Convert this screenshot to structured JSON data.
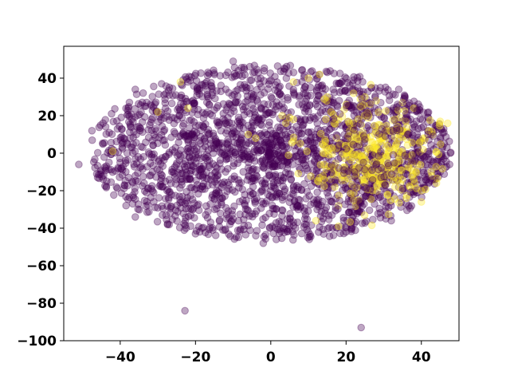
{
  "chart_data": {
    "type": "scatter",
    "title": "",
    "xlabel": "",
    "ylabel": "",
    "xlim": [
      -55,
      50
    ],
    "ylim": [
      -100,
      57
    ],
    "xticks": [
      -40,
      -20,
      0,
      20,
      40
    ],
    "yticks": [
      -100,
      -80,
      -60,
      -40,
      -20,
      0,
      20,
      40
    ],
    "xtick_labels": [
      "−40",
      "−20",
      "0",
      "20",
      "40"
    ],
    "ytick_labels": [
      "−100",
      "−80",
      "−60",
      "−40",
      "−20",
      "0",
      "20",
      "40"
    ],
    "grid": false,
    "legend": "none",
    "marker_alpha": 0.35,
    "colors": {
      "class_0": "#440154",
      "class_1": "#fde725"
    },
    "distribution": {
      "class_0": {
        "shape": "ellipse",
        "center": [
          0,
          0
        ],
        "semi_axes": [
          48,
          47
        ],
        "approx_count": 2200
      },
      "class_1": {
        "cluster_center": [
          28,
          -2
        ],
        "spread": [
          9,
          14
        ],
        "approx_count": 300
      }
    },
    "series": [
      {
        "class": 0,
        "points": [
          [
            -22.8,
            -84.0
          ],
          [
            24.0,
            -93.0
          ],
          [
            -51.0,
            -6.0
          ],
          [
            47.5,
            -6.0
          ],
          [
            -10.0,
            49.0
          ],
          [
            -2.0,
            -48.0
          ],
          [
            -47.5,
            12.0
          ],
          [
            -46.0,
            -13.0
          ],
          [
            46.0,
            11.0
          ],
          [
            45.0,
            -10.0
          ],
          [
            -36.0,
            34.0
          ],
          [
            34.0,
            34.0
          ],
          [
            -36.0,
            -34.0
          ],
          [
            32.0,
            -36.0
          ],
          [
            -22.0,
            38.0
          ],
          [
            22.0,
            39.0
          ],
          [
            -20.0,
            -43.0
          ],
          [
            20.0,
            -42.0
          ]
        ]
      },
      {
        "class": 1,
        "points": [
          [
            -24.0,
            38.0
          ],
          [
            -22.0,
            24.0
          ],
          [
            -42.0,
            1.0
          ],
          [
            -30.0,
            22.0
          ],
          [
            3.0,
            20.0
          ],
          [
            5.0,
            19.0
          ],
          [
            6.0,
            18.0
          ],
          [
            4.0,
            16.0
          ],
          [
            -4.0,
            8.0
          ],
          [
            -6.0,
            10.0
          ],
          [
            22.0,
            32.0
          ],
          [
            25.0,
            30.0
          ],
          [
            28.0,
            28.0
          ],
          [
            20.0,
            26.0
          ],
          [
            24.0,
            25.0
          ],
          [
            26.0,
            20.0
          ],
          [
            22.0,
            16.0
          ],
          [
            29.0,
            15.0
          ],
          [
            33.0,
            18.0
          ],
          [
            35.0,
            12.0
          ],
          [
            23.0,
            8.0
          ],
          [
            27.0,
            6.0
          ],
          [
            31.0,
            4.0
          ],
          [
            26.0,
            2.0
          ],
          [
            24.0,
            -2.0
          ],
          [
            29.0,
            -4.0
          ],
          [
            33.0,
            -6.0
          ],
          [
            22.0,
            -8.0
          ],
          [
            27.0,
            -10.0
          ],
          [
            31.0,
            -12.0
          ],
          [
            25.0,
            -14.0
          ],
          [
            29.0,
            -16.0
          ],
          [
            33.0,
            -18.0
          ],
          [
            27.0,
            -20.0
          ],
          [
            31.0,
            -22.0
          ],
          [
            38.0,
            -14.0
          ],
          [
            41.0,
            8.0
          ],
          [
            42.0,
            12.0
          ],
          [
            44.0,
            -16.0
          ],
          [
            40.0,
            -20.0
          ],
          [
            36.0,
            -24.0
          ],
          [
            34.0,
            8.0
          ],
          [
            20.0,
            0.0
          ],
          [
            21.0,
            12.0
          ],
          [
            18.0,
            18.0
          ],
          [
            16.0,
            22.0
          ],
          [
            15.0,
            30.0
          ],
          [
            10.0,
            40.0
          ],
          [
            13.0,
            42.0
          ],
          [
            6.0,
            38.0
          ],
          [
            17.0,
            -18.0
          ],
          [
            18.0,
            -39.0
          ],
          [
            12.0,
            -36.0
          ],
          [
            18.0,
            -28.0
          ],
          [
            40.0,
            -26.0
          ],
          [
            45.0,
            17.0
          ],
          [
            47.0,
            16.0
          ],
          [
            38.0,
            24.0
          ],
          [
            35.0,
            27.0
          ]
        ]
      }
    ]
  }
}
